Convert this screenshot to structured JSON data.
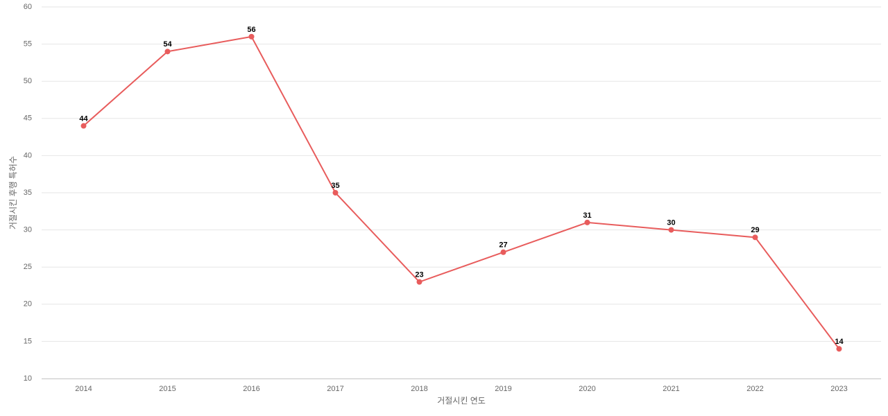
{
  "chart_data": {
    "type": "line",
    "x_label": "거절시킨 연도",
    "y_label": "거절시킨 후행 특허수",
    "categories": [
      "2014",
      "2015",
      "2016",
      "2017",
      "2018",
      "2019",
      "2020",
      "2021",
      "2022",
      "2023"
    ],
    "series": [
      {
        "color": "#e85c5c",
        "values": [
          44,
          54,
          56,
          35,
          23,
          27,
          31,
          30,
          29,
          14
        ]
      }
    ],
    "ylim": [
      10,
      60
    ],
    "yticks": [
      10,
      15,
      20,
      25,
      30,
      35,
      40,
      45,
      50,
      55,
      60
    ],
    "grid": true,
    "data_labels": true
  }
}
